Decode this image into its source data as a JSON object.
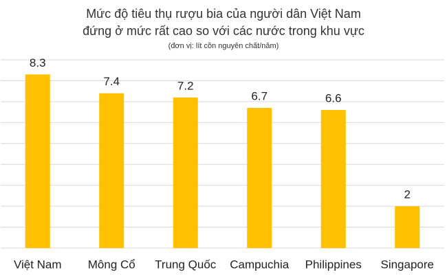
{
  "chart_data": {
    "type": "bar",
    "title": "Mức độ tiêu thụ rượu bia của người dân Việt Nam",
    "subtitle": "đứng ở mức rất cao so với các nước trong khu vực",
    "note": "(đơn vị: lít cồn nguyên chất/năm)",
    "categories": [
      "Việt Nam",
      "Mông Cổ",
      "Trung Quốc",
      "Campuchia",
      "Philippines",
      "Singapore"
    ],
    "values": [
      8.3,
      7.4,
      7.2,
      6.7,
      6.6,
      2
    ],
    "color": "#ffc000",
    "ylim": [
      0,
      9
    ],
    "yticks": [
      0,
      1,
      2,
      3,
      4,
      5,
      6,
      7,
      8,
      9
    ],
    "grid": true,
    "show_tick_labels": false
  }
}
